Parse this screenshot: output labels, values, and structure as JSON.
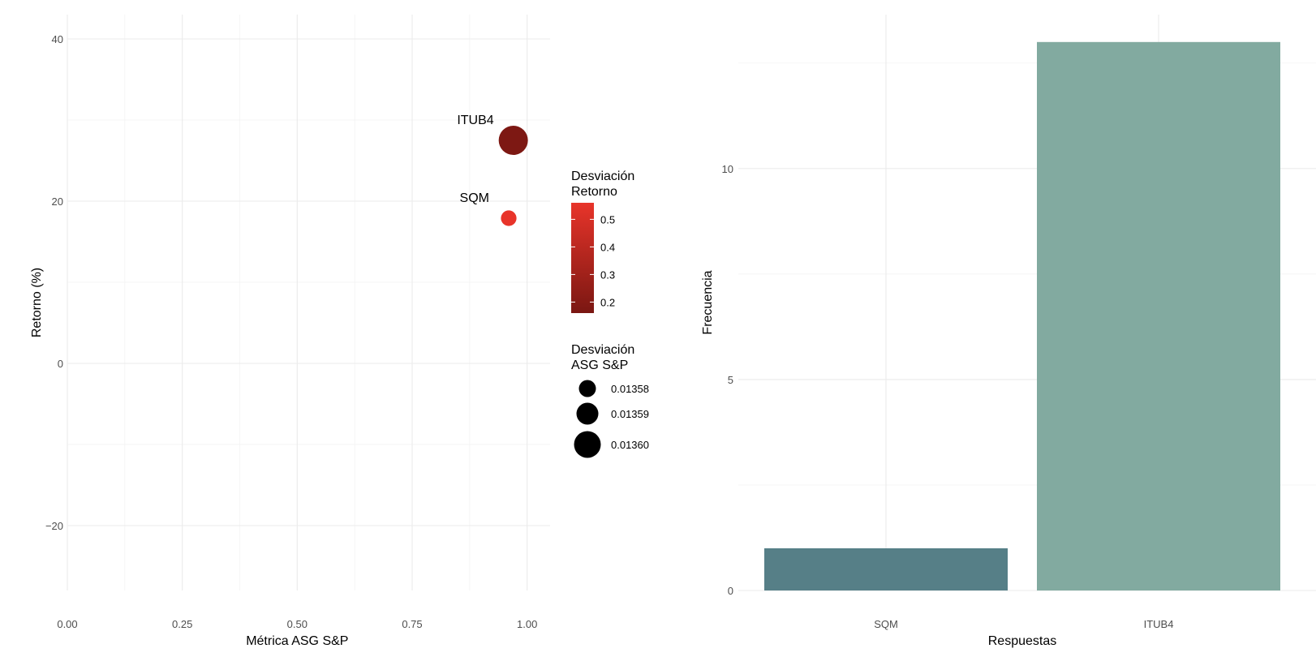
{
  "chart_data": [
    {
      "type": "scatter",
      "xlabel": "Métrica ASG S&P",
      "ylabel": "Retorno (%)",
      "xlim": [
        0.0,
        1.05
      ],
      "ylim": [
        -28,
        43
      ],
      "x_ticks": [
        0.0,
        0.25,
        0.5,
        0.75,
        1.0
      ],
      "x_tick_labels": [
        "0.00",
        "0.25",
        "0.50",
        "0.75",
        "1.00"
      ],
      "y_ticks": [
        -20,
        0,
        20,
        40
      ],
      "y_tick_labels": [
        "−20",
        "0",
        "20",
        "40"
      ],
      "grid": true,
      "points": [
        {
          "label": "ITUB4",
          "x": 0.97,
          "y": 27.5,
          "desviacion_retorno": 0.17,
          "desviacion_asg": 0.013605
        },
        {
          "label": "SQM",
          "x": 0.96,
          "y": 17.9,
          "desviacion_retorno": 0.56,
          "desviacion_asg": 0.013577
        }
      ],
      "color_legend": {
        "title_line1": "Desviación",
        "title_line2": "Retorno",
        "breaks": [
          0.5,
          0.4,
          0.3,
          0.2
        ],
        "break_labels": [
          "0.5",
          "0.4",
          "0.3",
          "0.2"
        ],
        "range": [
          0.16,
          0.56
        ],
        "low_color": "#7a1712",
        "high_color": "#e8342a"
      },
      "size_legend": {
        "title_line1": "Desviación",
        "title_line2": "ASG S&P",
        "breaks": [
          0.01358,
          0.01359,
          0.0136
        ],
        "break_labels": [
          "0.01358",
          "0.01359",
          "0.01360"
        ],
        "color": "#000000"
      },
      "legend_position": "right"
    },
    {
      "type": "bar",
      "xlabel": "Respuestas",
      "ylabel": "Frecuencia",
      "categories": [
        "SQM",
        "ITUB4"
      ],
      "values": [
        1,
        13
      ],
      "colors": [
        "#567f87",
        "#82aaa0"
      ],
      "ylim": [
        0,
        13.65
      ],
      "y_ticks": [
        0,
        5,
        10
      ],
      "y_tick_labels": [
        "0",
        "5",
        "10"
      ],
      "grid": true
    }
  ]
}
